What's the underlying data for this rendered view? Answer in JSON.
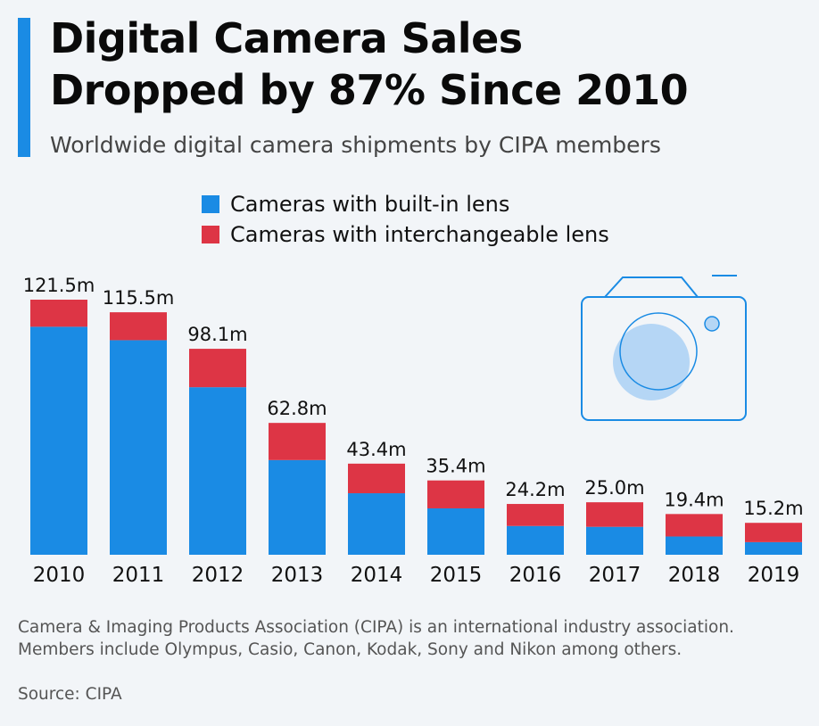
{
  "header": {
    "title": "Digital Camera Sales\nDropped by 87% Since 2010",
    "subtitle": "Worldwide digital camera shipments by CIPA members"
  },
  "colors": {
    "built_in": "#1a8be4",
    "interchangeable": "#dd3545",
    "accent": "#1a8be4"
  },
  "chart_data": {
    "type": "bar",
    "stacked": true,
    "categories": [
      "2010",
      "2011",
      "2012",
      "2013",
      "2014",
      "2015",
      "2016",
      "2017",
      "2018",
      "2019"
    ],
    "series": [
      {
        "name": "Cameras with built-in lens",
        "values": [
          108.6,
          102.2,
          79.8,
          45.1,
          29.3,
          22.1,
          13.7,
          13.3,
          8.7,
          6.0
        ]
      },
      {
        "name": "Cameras with interchangeable lens",
        "values": [
          12.9,
          13.3,
          18.3,
          17.7,
          14.1,
          13.3,
          10.5,
          11.7,
          10.7,
          9.2
        ]
      }
    ],
    "total_labels": [
      "121.5m",
      "115.5m",
      "98.1m",
      "62.8m",
      "43.4m",
      "35.4m",
      "24.2m",
      "25.0m",
      "19.4m",
      "15.2m"
    ],
    "legend_position": "top",
    "grid": false,
    "ylim": [
      0,
      121.5
    ]
  },
  "footer": {
    "note": "Camera & Imaging Products Association (CIPA) is an international industry association. Members include Olympus, Casio, Canon, Kodak, Sony and Nikon among others.",
    "source": "Source: CIPA"
  },
  "icons": {
    "decoration": "camera-icon"
  }
}
